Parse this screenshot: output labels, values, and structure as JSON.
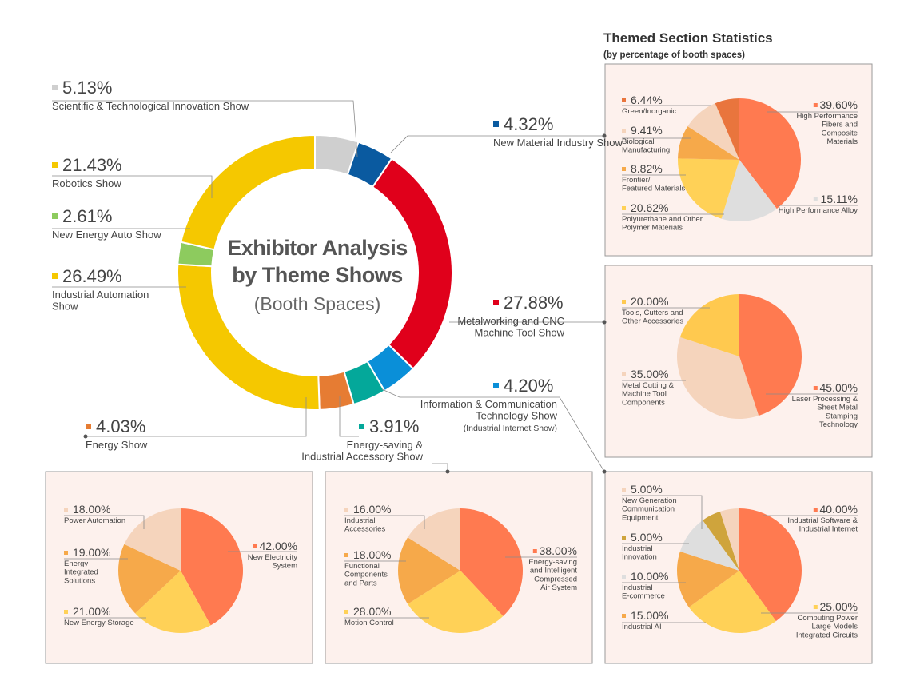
{
  "main": {
    "title_line1": "Exhibitor Analysis",
    "title_line2": "by Theme Shows",
    "title_line3": "(Booth Spaces)"
  },
  "themed": {
    "title": "Themed Section Statistics",
    "subtitle": "(by percentage of booth spaces)"
  },
  "chart_data": [
    {
      "id": "main",
      "type": "pie",
      "title": "Exhibitor Analysis by Theme Shows (Booth Spaces)",
      "slices": [
        {
          "label": "Scientific & Technological Innovation Show",
          "pct": "5.13%",
          "value": 5.13,
          "color": "#cfcfcf"
        },
        {
          "label": "New Material Industry Show",
          "pct": "4.32%",
          "value": 4.32,
          "color": "#0a5aa0"
        },
        {
          "label": "Metalworking and CNC Machine Tool Show",
          "pct": "27.88%",
          "value": 27.88,
          "color": "#e0001b"
        },
        {
          "label": "Information & Communication Technology Show (Industrial Internet Show)",
          "pct": "4.20%",
          "value": 4.2,
          "color": "#0a8fd8"
        },
        {
          "label": "Energy-saving & Industrial Accessory Show",
          "pct": "3.91%",
          "value": 3.91,
          "color": "#04a89a"
        },
        {
          "label": "Energy Show",
          "pct": "4.03%",
          "value": 4.03,
          "color": "#e67c33"
        },
        {
          "label": "Industrial Automation Show",
          "pct": "26.49%",
          "value": 26.49,
          "color": "#f5c800"
        },
        {
          "label": "New Energy Auto Show",
          "pct": "2.61%",
          "value": 2.61,
          "color": "#8dcb5e"
        },
        {
          "label": "Robotics Show",
          "pct": "21.43%",
          "value": 21.43,
          "color": "#f5c800"
        }
      ],
      "labels": {
        "sci": {
          "pct": "5.13%",
          "l1": "Scientific & Technological Innovation Show"
        },
        "rob": {
          "pct": "21.43%",
          "l1": "Robotics Show"
        },
        "nea": {
          "pct": "2.61%",
          "l1": "New Energy Auto Show"
        },
        "ind": {
          "pct": "26.49%",
          "l1": "Industrial Automation",
          "l2": "Show"
        },
        "mat": {
          "pct": "4.32%",
          "l1": "New Material Industry Show"
        },
        "met": {
          "pct": "27.88%",
          "l1": "Metalworking and CNC",
          "l2": "Machine Tool Show"
        },
        "ict": {
          "pct": "4.20%",
          "l1": "Information & Communication",
          "l2": "Technology Show",
          "l3": "(Industrial Internet Show)"
        },
        "ene": {
          "pct": "4.03%",
          "l1": "Energy Show"
        },
        "esa": {
          "pct": "3.91%",
          "l1": "Energy-saving &",
          "l2": "Industrial Accessory Show"
        }
      }
    },
    {
      "id": "material",
      "type": "pie",
      "title": "New Material Industry Show",
      "slices": [
        {
          "label": "High Performance Fibers and Composite Materials",
          "pct": "39.60%",
          "value": 39.6,
          "color": "#ff7a50"
        },
        {
          "label": "High Performance Alloy",
          "pct": "15.11%",
          "value": 15.11,
          "color": "#dedede"
        },
        {
          "label": "Polyurethane and Other Polymer Materials",
          "pct": "20.62%",
          "value": 20.62,
          "color": "#ffd157"
        },
        {
          "label": "Frontier/ Featured Materials",
          "pct": "8.82%",
          "value": 8.82,
          "color": "#f6a94a"
        },
        {
          "label": "Biological Manufacturing",
          "pct": "9.41%",
          "value": 9.41,
          "color": "#f5d4bc"
        },
        {
          "label": "Green/Inorganic",
          "pct": "6.44%",
          "value": 6.44,
          "color": "#e9753d"
        }
      ],
      "labels": {
        "hpf": {
          "pct": "39.60%",
          "l1": "High Performance",
          "l2": "Fibers and",
          "l3": "Composite",
          "l4": "Materials"
        },
        "hpa": {
          "pct": "15.11%",
          "l1": "High Performance Alloy"
        },
        "pu": {
          "pct": "20.62%",
          "l1": "Polyurethane and Other",
          "l2": "Polymer Materials"
        },
        "ff": {
          "pct": "8.82%",
          "l1": "Frontier/",
          "l2": "Featured Materials"
        },
        "bio": {
          "pct": "9.41%",
          "l1": "Biological",
          "l2": "Manufacturing"
        },
        "gi": {
          "pct": "6.44%",
          "l1": "Green/Inorganic"
        }
      }
    },
    {
      "id": "metal",
      "type": "pie",
      "title": "Metalworking and CNC Machine Tool Show",
      "slices": [
        {
          "label": "Laser Processing & Sheet Metal Stamping Technology",
          "pct": "45.00%",
          "value": 45,
          "color": "#ff7a50"
        },
        {
          "label": "Metal Cutting & Machine Tool Components",
          "pct": "35.00%",
          "value": 35,
          "color": "#f5d4bc"
        },
        {
          "label": "Tools, Cutters and Other Accessories",
          "pct": "20.00%",
          "value": 20,
          "color": "#ffc94f"
        }
      ],
      "labels": {
        "laser": {
          "pct": "45.00%",
          "l1": "Laser Processing &",
          "l2": "Sheet Metal",
          "l3": "Stamping",
          "l4": "Technology"
        },
        "cut": {
          "pct": "35.00%",
          "l1": "Metal Cutting &",
          "l2": "Machine Tool",
          "l3": "Components"
        },
        "tools": {
          "pct": "20.00%",
          "l1": "Tools, Cutters and",
          "l2": "Other Accessories"
        }
      }
    },
    {
      "id": "ict",
      "type": "pie",
      "title": "Information & Communication Technology Show",
      "slices": [
        {
          "label": "Industrial Software & Industrial Internet",
          "pct": "40.00%",
          "value": 40,
          "color": "#ff7a50"
        },
        {
          "label": "Computing Power Large Models Integrated Circuits",
          "pct": "25.00%",
          "value": 25,
          "color": "#ffd157"
        },
        {
          "label": "Industrial AI",
          "pct": "15.00%",
          "value": 15,
          "color": "#f6a94a"
        },
        {
          "label": "Industrial E-commerce",
          "pct": "10.00%",
          "value": 10,
          "color": "#dedede"
        },
        {
          "label": "Industrial Innovation",
          "pct": "5.00%",
          "value": 5,
          "color": "#cfa43c"
        },
        {
          "label": "New Generation Communication Equipment",
          "pct": "5.00%",
          "value": 5,
          "color": "#f5d4bc"
        }
      ],
      "labels": {
        "sw": {
          "pct": "40.00%",
          "l1": "Industrial Software &",
          "l2": "Industrial Internet"
        },
        "cp": {
          "pct": "25.00%",
          "l1": "Computing Power",
          "l2": "Large Models",
          "l3": "Integrated Circuits"
        },
        "ai": {
          "pct": "15.00%",
          "l1": "Industrial AI"
        },
        "ec": {
          "pct": "10.00%",
          "l1": "Industrial",
          "l2": "E-commerce"
        },
        "inn": {
          "pct": "5.00%",
          "l1": "Industrial",
          "l2": "Innovation"
        },
        "ngc": {
          "pct": "5.00%",
          "l1": "New Generation",
          "l2": "Communication",
          "l3": "Equipment"
        }
      }
    },
    {
      "id": "energy",
      "type": "pie",
      "title": "Energy Show",
      "slices": [
        {
          "label": "New Electricity System",
          "pct": "42.00%",
          "value": 42,
          "color": "#ff7a50"
        },
        {
          "label": "New Energy Storage",
          "pct": "21.00%",
          "value": 21,
          "color": "#ffd157"
        },
        {
          "label": "Energy Integrated Solutions",
          "pct": "19.00%",
          "value": 19,
          "color": "#f6a94a"
        },
        {
          "label": "Power Automation",
          "pct": "18.00%",
          "value": 18,
          "color": "#f5d4bc"
        }
      ],
      "labels": {
        "nes": {
          "pct": "42.00%",
          "l1": "New Electricity",
          "l2": "System"
        },
        "stor": {
          "pct": "21.00%",
          "l1": "New Energy Storage"
        },
        "eis": {
          "pct": "19.00%",
          "l1": "Energy",
          "l2": "Integrated",
          "l3": "Solutions"
        },
        "pa": {
          "pct": "18.00%",
          "l1": "Power Automation"
        }
      }
    },
    {
      "id": "saving",
      "type": "pie",
      "title": "Energy-saving & Industrial Accessory Show",
      "slices": [
        {
          "label": "Energy-saving and Intelligent Compressed Air System",
          "pct": "38.00%",
          "value": 38,
          "color": "#ff7a50"
        },
        {
          "label": "Motion Control",
          "pct": "28.00%",
          "value": 28,
          "color": "#ffd157"
        },
        {
          "label": "Functional Components and Parts",
          "pct": "18.00%",
          "value": 18,
          "color": "#f6a94a"
        },
        {
          "label": "Industrial Accessories",
          "pct": "16.00%",
          "value": 16,
          "color": "#f5d4bc"
        }
      ],
      "labels": {
        "air": {
          "pct": "38.00%",
          "l1": "Energy-saving",
          "l2": "and Intelligent",
          "l3": "Compressed",
          "l4": "Air System"
        },
        "mc": {
          "pct": "28.00%",
          "l1": "Motion Control"
        },
        "fcp": {
          "pct": "18.00%",
          "l1": "Functional",
          "l2": "Components",
          "l3": "and Parts"
        },
        "acc": {
          "pct": "16.00%",
          "l1": "Industrial",
          "l2": "Accessories"
        }
      }
    }
  ]
}
